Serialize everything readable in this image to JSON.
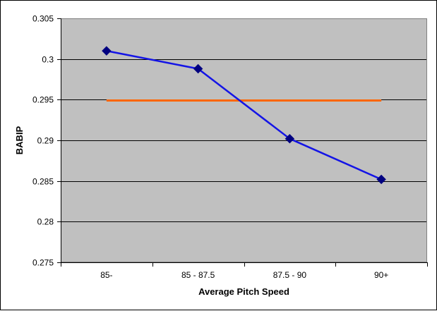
{
  "chart_data": {
    "type": "line",
    "title": "",
    "xlabel": "Average Pitch Speed",
    "ylabel": "BABIP",
    "categories": [
      "85-",
      "85 - 87.5",
      "87.5 - 90",
      "90+"
    ],
    "series": [
      {
        "values": [
          0.301,
          0.2988,
          0.2902,
          0.2852
        ],
        "color": "#1414e6",
        "marker": "diamond",
        "marker_color": "#000080"
      },
      {
        "values": [
          0.2949,
          0.2949,
          0.2949,
          0.2949
        ],
        "color": "#ff6600",
        "marker": "none"
      }
    ],
    "ylim": [
      0.275,
      0.305
    ],
    "yticks": [
      0.275,
      0.28,
      0.285,
      0.29,
      0.295,
      0.3,
      0.305
    ],
    "ytick_labels": [
      "0.275",
      "0.28",
      "0.285",
      "0.29",
      "0.295",
      "0.3",
      "0.305"
    ],
    "grid": true,
    "legend": "none",
    "plot_background": "#c0c0c0"
  }
}
